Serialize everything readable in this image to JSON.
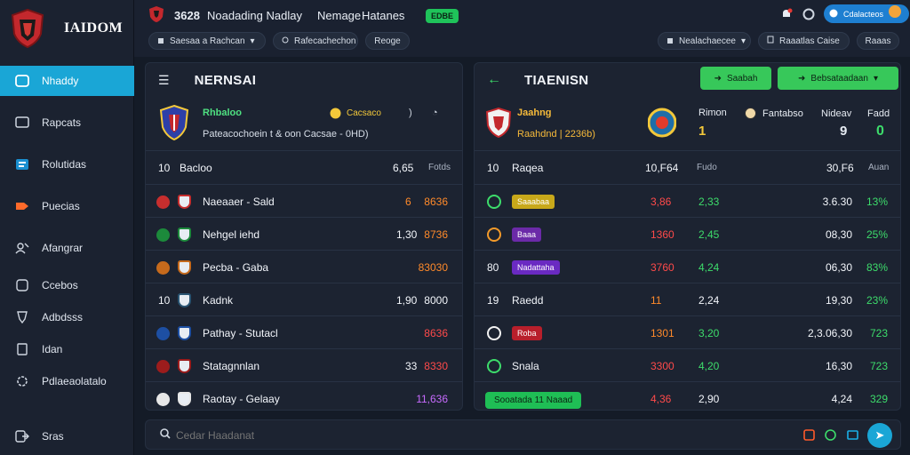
{
  "brand": {
    "name": "IAIDOM",
    "logo_color": "#c3282d"
  },
  "sidebar": {
    "items": [
      {
        "label": "Nhaddy",
        "icon": "monitor-icon",
        "active": true
      },
      {
        "label": "Rapcats",
        "icon": "chat-icon"
      },
      {
        "label": "Rolutidas",
        "icon": "list-icon"
      },
      {
        "label": "Puecias",
        "icon": "tag-icon"
      },
      {
        "label": "Afangrar",
        "icon": "people-icon"
      },
      {
        "label": "Ccebos",
        "icon": "clipboard-icon"
      },
      {
        "label": "Adbdsss",
        "icon": "shield-icon"
      },
      {
        "label": "Idan",
        "icon": "document-icon"
      },
      {
        "label": "Pdlaeaolatalo",
        "icon": "gear-icon"
      },
      {
        "label": "Sras",
        "icon": "logout-icon"
      }
    ]
  },
  "topbar": {
    "title_prefix": "3628",
    "title": "Noadading Nadlay",
    "tab1": "Nemage",
    "tab2": "Hatanes",
    "badge": "EDBE",
    "user_label": "Cdalacteos",
    "filter1": "Saesaa a Rachcan",
    "filter2": "Rafecachechon",
    "filter3": "Reoge",
    "filter4": "Nealachaecee",
    "filter5": "Raaatlas Caise",
    "filter6": "Raaas"
  },
  "left_panel": {
    "title": "NERNSAI",
    "team_name": "Rhbaloo",
    "team_sub": "Pateacochoein t & oon Cacsae - 0HD)",
    "team_status": "Cacsaco",
    "header_row": {
      "col1": "10",
      "col2": "Bacloo",
      "col3": "6,65",
      "col4": "Fotds"
    },
    "rows": [
      {
        "idx": "",
        "name": "Naeaaer - Sald",
        "v1": "",
        "v2": "6",
        "v3": "8636",
        "v3c": "orange",
        "logo": "#c72e2e"
      },
      {
        "idx": "",
        "name": "Nehgel iehd",
        "v1": "1,30",
        "v2": "",
        "v3": "8736",
        "v3c": "orange",
        "logo": "#1c8a3b"
      },
      {
        "idx": "",
        "name": "Pecba - Gaba",
        "v1": "",
        "v2": "",
        "v3": "83030",
        "v3c": "orange",
        "logo": "#c66a1c"
      },
      {
        "idx": "10",
        "name": "Kadnk",
        "v1": "1,90",
        "v2": "",
        "v3": "8000",
        "v3c": "white",
        "logo": "#2a5573"
      },
      {
        "idx": "",
        "name": "Pathay - Stutacl",
        "v1": "",
        "v2": "",
        "v3": "8636",
        "v3c": "red",
        "logo": "#1d4fa3"
      },
      {
        "idx": "",
        "name": "Statagnnlan",
        "v1": "",
        "v2": "33",
        "v3": "8330",
        "v3c": "red",
        "logo": "#9c1c1c"
      },
      {
        "idx": "",
        "name": "Raotay - Gelaay",
        "v1": "",
        "v2": "",
        "v3": "11,636",
        "v3c": "purple",
        "logo": "#e7e7e7"
      }
    ]
  },
  "right_panel": {
    "title": "TIAENISN",
    "btn1": "Saabah",
    "btn2": "Bebsataadaan",
    "team_name": "Jaahng",
    "team_sub": "Raahdnd | 2236b)",
    "col_a_label": "Rimon",
    "col_a_value": "1",
    "col_b_label": "Fantabso",
    "col_b_value": "9",
    "col_c_label": "Nideav",
    "col_d_label": "Fadd",
    "col_d_value": "0",
    "header_row": {
      "c1": "10",
      "c2": "Raqea",
      "c3": "10,F64",
      "c4": "Fudo",
      "c5": "30,F6",
      "c6": "Auan"
    },
    "rows": [
      {
        "idx": "",
        "tag": "Saaabaa",
        "tagc": "#c8a81a",
        "v1": "3,86",
        "v1c": "red",
        "v2": "2,33",
        "v3": "3.6.30",
        "v4": "13%"
      },
      {
        "idx": "",
        "tag": "Baaa",
        "tagc": "#6b2aa8",
        "v1": "1360",
        "v1c": "red",
        "v2": "2,45",
        "v3": "08,30",
        "v4": "25%"
      },
      {
        "idx": "80",
        "tag": "Nadattaha",
        "tagc": "#6a2ac2",
        "v1": "3760",
        "v1c": "red",
        "v2": "4,24",
        "v3": "06,30",
        "v4": "83%"
      },
      {
        "idx": "19",
        "tag": "Raedd",
        "tagc": "",
        "v1": "11",
        "v1c": "orange",
        "v2": "2,24",
        "v3": "19,30",
        "v4": "23%"
      },
      {
        "idx": "",
        "tag": "Roba",
        "tagc": "#b81f2b",
        "v1": "1301",
        "v1c": "orange",
        "v2": "3,20",
        "v3": "2,3.06,30",
        "v4": "723"
      },
      {
        "idx": "",
        "tag": "Snala",
        "tagc": "",
        "v1": "3300",
        "v1c": "red",
        "v2": "4,20",
        "v3": "16,30",
        "v4": "723"
      },
      {
        "idx": "",
        "tag": "Sooatada 11 Naaad",
        "tagc": "#1fbe55",
        "v1": "4,36",
        "v1c": "red",
        "v2": "2,90",
        "v3": "4,24",
        "v4": "329"
      }
    ]
  },
  "search": {
    "placeholder": "Cedar Haadanat"
  }
}
